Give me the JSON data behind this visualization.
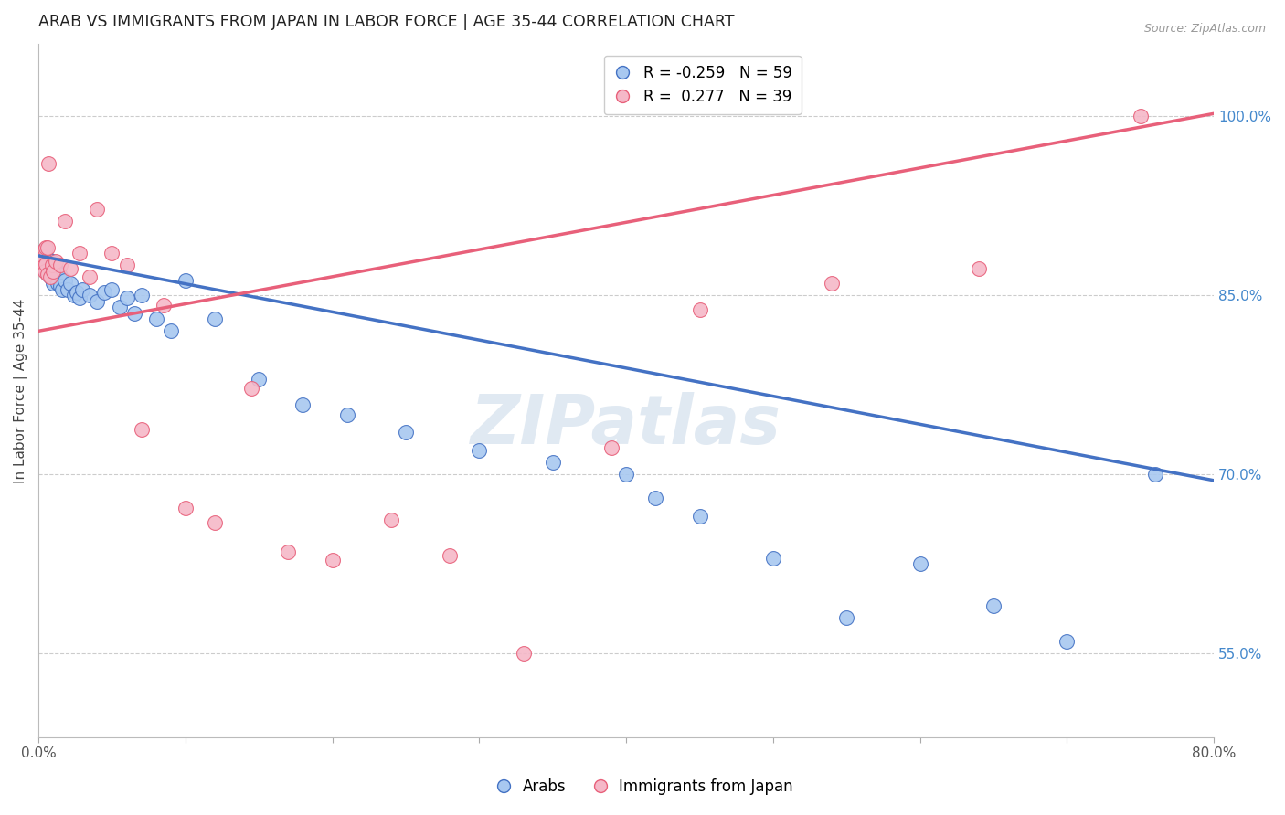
{
  "title": "ARAB VS IMMIGRANTS FROM JAPAN IN LABOR FORCE | AGE 35-44 CORRELATION CHART",
  "source": "Source: ZipAtlas.com",
  "ylabel": "In Labor Force | Age 35-44",
  "xlim": [
    0.0,
    0.8
  ],
  "ylim": [
    0.48,
    1.06
  ],
  "xticks": [
    0.0,
    0.1,
    0.2,
    0.3,
    0.4,
    0.5,
    0.6,
    0.7,
    0.8
  ],
  "yticks_right": [
    0.55,
    0.7,
    0.85,
    1.0
  ],
  "yticklabels_right": [
    "55.0%",
    "70.0%",
    "85.0%",
    "100.0%"
  ],
  "blue_R": "-0.259",
  "blue_N": "59",
  "pink_R": "0.277",
  "pink_N": "39",
  "blue_color": "#A8C8F0",
  "pink_color": "#F5B8C8",
  "blue_line_color": "#4472C4",
  "pink_line_color": "#E8607A",
  "grid_color": "#CCCCCC",
  "watermark": "ZIPatlas",
  "blue_scatter_x": [
    0.001,
    0.002,
    0.002,
    0.003,
    0.003,
    0.004,
    0.004,
    0.005,
    0.005,
    0.005,
    0.006,
    0.006,
    0.007,
    0.007,
    0.008,
    0.008,
    0.009,
    0.01,
    0.01,
    0.011,
    0.012,
    0.013,
    0.014,
    0.015,
    0.016,
    0.018,
    0.02,
    0.022,
    0.024,
    0.026,
    0.028,
    0.03,
    0.035,
    0.04,
    0.045,
    0.05,
    0.055,
    0.06,
    0.065,
    0.07,
    0.08,
    0.09,
    0.1,
    0.12,
    0.15,
    0.18,
    0.21,
    0.25,
    0.3,
    0.35,
    0.4,
    0.42,
    0.45,
    0.5,
    0.55,
    0.6,
    0.65,
    0.7,
    0.76
  ],
  "blue_scatter_y": [
    0.88,
    0.878,
    0.882,
    0.875,
    0.885,
    0.872,
    0.888,
    0.87,
    0.876,
    0.882,
    0.868,
    0.875,
    0.872,
    0.88,
    0.865,
    0.87,
    0.878,
    0.86,
    0.875,
    0.865,
    0.872,
    0.86,
    0.868,
    0.858,
    0.855,
    0.862,
    0.855,
    0.86,
    0.85,
    0.852,
    0.848,
    0.855,
    0.85,
    0.845,
    0.852,
    0.855,
    0.84,
    0.848,
    0.835,
    0.85,
    0.83,
    0.82,
    0.862,
    0.83,
    0.78,
    0.758,
    0.75,
    0.735,
    0.72,
    0.71,
    0.7,
    0.68,
    0.665,
    0.63,
    0.58,
    0.625,
    0.59,
    0.56,
    0.7
  ],
  "pink_scatter_x": [
    0.001,
    0.002,
    0.002,
    0.003,
    0.003,
    0.004,
    0.004,
    0.005,
    0.005,
    0.006,
    0.006,
    0.007,
    0.008,
    0.009,
    0.01,
    0.012,
    0.015,
    0.018,
    0.022,
    0.028,
    0.035,
    0.04,
    0.05,
    0.06,
    0.07,
    0.085,
    0.1,
    0.12,
    0.145,
    0.17,
    0.2,
    0.24,
    0.28,
    0.33,
    0.39,
    0.45,
    0.54,
    0.64,
    0.75
  ],
  "pink_scatter_y": [
    0.878,
    0.88,
    0.875,
    0.882,
    0.874,
    0.888,
    0.87,
    0.89,
    0.876,
    0.89,
    0.868,
    0.96,
    0.865,
    0.875,
    0.87,
    0.878,
    0.875,
    0.912,
    0.872,
    0.885,
    0.865,
    0.922,
    0.885,
    0.875,
    0.738,
    0.842,
    0.672,
    0.66,
    0.772,
    0.635,
    0.628,
    0.662,
    0.632,
    0.55,
    0.722,
    0.838,
    0.86,
    0.872,
    1.0
  ],
  "blue_trend_x": [
    0.0,
    0.8
  ],
  "blue_trend_y": [
    0.883,
    0.695
  ],
  "pink_trend_x": [
    0.0,
    0.8
  ],
  "pink_trend_y": [
    0.82,
    1.002
  ]
}
